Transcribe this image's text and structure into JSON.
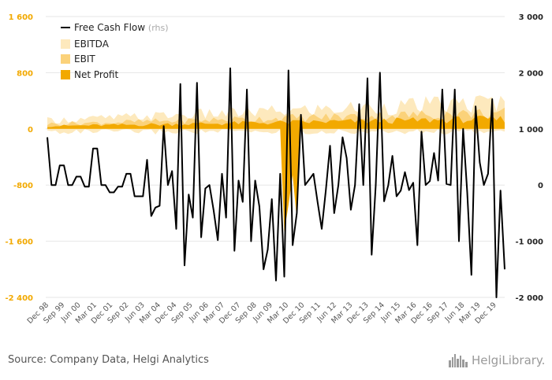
{
  "chart_data": {
    "type": "area",
    "title": "",
    "source": "Source: Company Data, Helgi Analytics",
    "logo_text": "HelgiLibrary.",
    "left_axis": {
      "ylim": [
        -2400,
        1600
      ],
      "ticks": [
        1600,
        800,
        0,
        -800,
        -1600,
        -2400
      ],
      "tick_labels": [
        "1 600",
        "800",
        "0",
        "-800",
        "-1 600",
        "-2 400"
      ]
    },
    "right_axis": {
      "ylim": [
        -2000,
        3000
      ],
      "ticks": [
        3000,
        2000,
        1000,
        0,
        -1000,
        -2000
      ],
      "tick_labels": [
        "3 000",
        "2 000",
        "1 000",
        "0",
        "-1 000",
        "-2 000"
      ]
    },
    "x_tick_labels": [
      "Dec 98",
      "Sep 99",
      "Jun 00",
      "Mar 01",
      "Dec 01",
      "Sep 02",
      "Jun 03",
      "Mar 04",
      "Dec 04",
      "Sep 05",
      "Jun 06",
      "Mar 07",
      "Dec 07",
      "Sep 08",
      "Jun 09",
      "Mar 10",
      "Dec 10",
      "Sep 11",
      "Jun 12",
      "Mar 13",
      "Dec 13",
      "Sep 14",
      "Jun 15",
      "Mar 16",
      "Dec 16",
      "Sep 17",
      "Jun 18",
      "Mar 19",
      "Dec 19"
    ],
    "legend_position": "top-left",
    "grid": true,
    "series": [
      {
        "name": "Free Cash Flow",
        "unit": "(rhs)",
        "axis": "right",
        "kind": "line",
        "color": "#000000",
        "values": [
          850,
          0,
          0,
          350,
          350,
          0,
          0,
          150,
          150,
          -30,
          -30,
          650,
          650,
          0,
          0,
          -130,
          -130,
          -30,
          -30,
          200,
          200,
          -200,
          -200,
          -200,
          450,
          -550,
          -400,
          -370,
          1050,
          0,
          250,
          -780,
          1800,
          -1430,
          -170,
          -580,
          1820,
          -930,
          -60,
          0,
          -450,
          -980,
          200,
          -580,
          2080,
          -1170,
          80,
          -300,
          1700,
          -1000,
          80,
          -380,
          -1500,
          -1150,
          -250,
          -1700,
          200,
          -1630,
          2040,
          -1070,
          -500,
          1250,
          0,
          100,
          200,
          -300,
          -780,
          -80,
          700,
          -500,
          0,
          850,
          480,
          -440,
          0,
          1440,
          0,
          1900,
          -1240,
          0,
          2000,
          -290,
          0,
          520,
          -200,
          -100,
          230,
          -90,
          40,
          -1070,
          950,
          0,
          70,
          570,
          80,
          1700,
          20,
          0,
          1700,
          -1000,
          1000,
          -130,
          -1600,
          1400,
          400,
          0,
          200,
          1530,
          -2000,
          -100,
          -1500
        ]
      },
      {
        "name": "EBITDA",
        "axis": "left",
        "kind": "area",
        "color": "#fde9bd"
      },
      {
        "name": "EBIT",
        "axis": "left",
        "kind": "area",
        "color": "#fbd27a"
      },
      {
        "name": "Net Profit",
        "axis": "left",
        "kind": "area",
        "color": "#f2a900"
      }
    ]
  }
}
